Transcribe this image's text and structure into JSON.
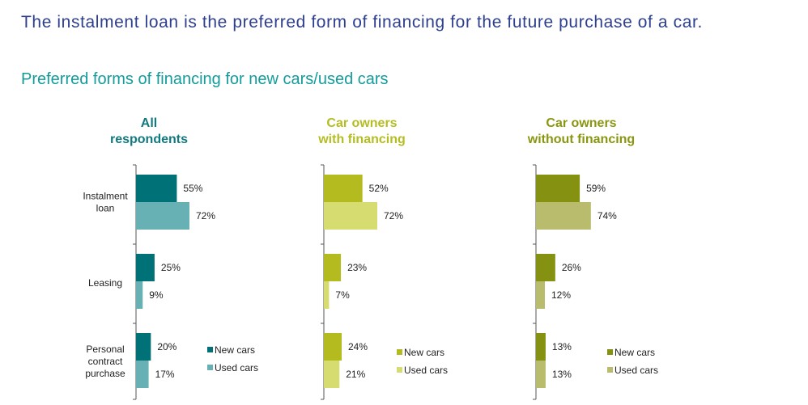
{
  "headline": "The instalment loan is the preferred form of financing for the future purchase of a car.",
  "subtitle": "Preferred forms of financing for new cars/used cars",
  "chart_data": {
    "type": "bar",
    "orientation": "horizontal",
    "categories": [
      "Instalment loan",
      "Leasing",
      "Personal contract purchase"
    ],
    "unit": "%",
    "xlim": [
      0,
      100
    ],
    "legend_position": "bottom-right",
    "panels": [
      {
        "title_lines": [
          "All",
          "respondents"
        ],
        "title_color": "#117a80",
        "series": [
          {
            "name": "New cars",
            "values": [
              55,
              25,
              20
            ],
            "color": "#007277"
          },
          {
            "name": "Used cars",
            "values": [
              72,
              9,
              17
            ],
            "color": "#67b1b5"
          }
        ]
      },
      {
        "title_lines": [
          "Car owners",
          "with financing"
        ],
        "title_color": "#b4bd22",
        "series": [
          {
            "name": "New cars",
            "values": [
              52,
              23,
              24
            ],
            "color": "#b4bb1f"
          },
          {
            "name": "Used cars",
            "values": [
              72,
              7,
              21
            ],
            "color": "#d6dc6f"
          }
        ]
      },
      {
        "title_lines": [
          "Car owners",
          "without financing"
        ],
        "title_color": "#8a960f",
        "series": [
          {
            "name": "New cars",
            "values": [
              59,
              26,
              13
            ],
            "color": "#859110"
          },
          {
            "name": "Used cars",
            "values": [
              74,
              12,
              13
            ],
            "color": "#b9bc6d"
          }
        ]
      }
    ]
  }
}
